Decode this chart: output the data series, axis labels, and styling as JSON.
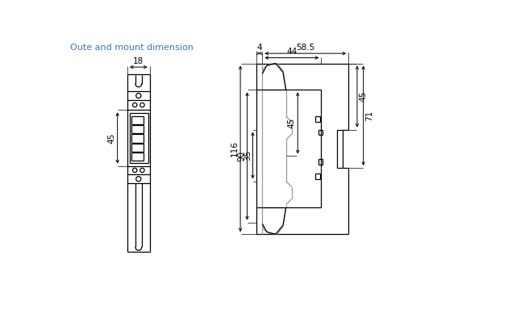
{
  "title": "Oute and mount dimension",
  "title_color": "#4472C4",
  "title_fontsize": 8,
  "bg_color": "#ffffff",
  "line_color": "#000000",
  "gray_color": "#999999",
  "dim_fontsize": 7.5
}
